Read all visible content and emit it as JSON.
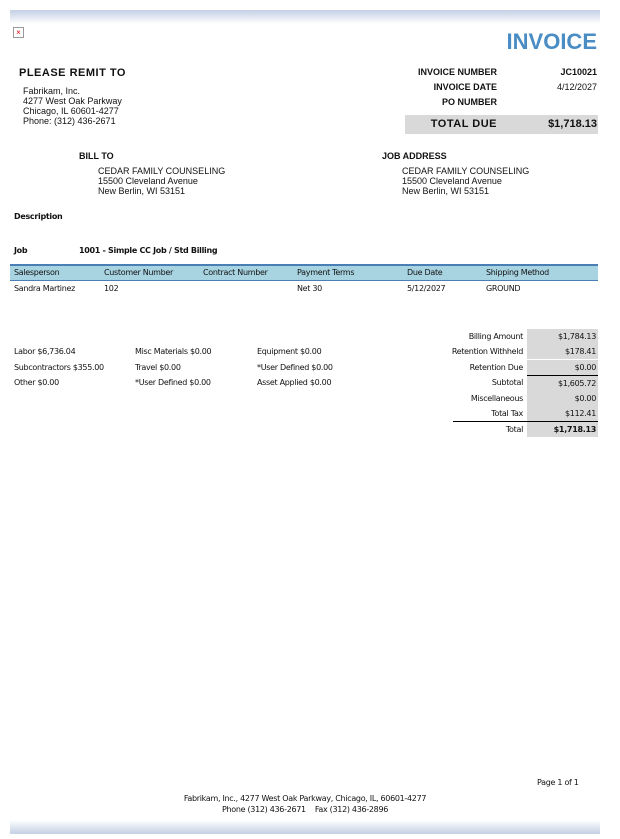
{
  "header": {
    "title": "INVOICE",
    "remit_label": "PLEASE REMIT TO",
    "remit_lines": [
      "Fabrikam, Inc.",
      "4277 West Oak Parkway",
      "Chicago, IL  60601-4277",
      "Phone: (312) 436-2671"
    ],
    "invoice_number_label": "INVOICE NUMBER",
    "invoice_number": "JC10021",
    "invoice_date_label": "INVOICE DATE",
    "invoice_date": "4/12/2027",
    "po_number_label": "PO NUMBER",
    "po_number": "",
    "total_due_label": "TOTAL DUE",
    "total_due": "$1,718.13"
  },
  "bill_to": {
    "label": "BILL TO",
    "lines": [
      "CEDAR FAMILY COUNSELING",
      "15500 Cleveland Avenue",
      "New Berlin, WI  53151"
    ]
  },
  "job_address": {
    "label": "JOB ADDRESS",
    "lines": [
      "CEDAR FAMILY COUNSELING",
      "15500 Cleveland Avenue",
      "New Berlin, WI 53151"
    ]
  },
  "description_label": "Description",
  "job": {
    "label": "Job",
    "value": "1001 - Simple CC Job / Std Billing"
  },
  "table": {
    "headers": [
      "Salesperson",
      "Customer Number",
      "Contract Number",
      "Payment Terms",
      "Due Date",
      "Shipping Method"
    ],
    "row": [
      "Sandra Martinez",
      "102",
      "",
      "Net 30",
      "5/12/2027",
      "GROUND"
    ],
    "header_color": "#a8d4e2",
    "border_color": "#4a7fb5"
  },
  "costs": [
    [
      "Labor $6,736.04",
      "Misc Materials $0.00",
      "Equipment $0.00"
    ],
    [
      "Subcontractors $355.00",
      "Travel $0.00",
      "*User Defined $0.00"
    ],
    [
      "Other $0.00",
      "*User Defined $0.00",
      "Asset Applied $0.00"
    ]
  ],
  "summary": [
    {
      "label": "Billing Amount",
      "value": "$1,784.13"
    },
    {
      "label": "Retention Withheld",
      "value": "$178.41"
    },
    {
      "label": "Retention Due",
      "value": "$0.00"
    },
    {
      "label": "Subtotal",
      "value": "$1,605.72"
    },
    {
      "label": "Miscellaneous",
      "value": "$0.00"
    },
    {
      "label": "Total Tax",
      "value": "$112.41"
    },
    {
      "label": "Total",
      "value": "$1,718.13"
    }
  ],
  "footer": {
    "page": "Page 1 of 1",
    "line1": "Fabrikam, Inc.,  4277 West Oak Parkway,  Chicago, IL, 60601-4277",
    "line2": "Phone (312) 436-2671    Fax (312) 436-2896"
  },
  "accent_color": "#4a8cc4"
}
